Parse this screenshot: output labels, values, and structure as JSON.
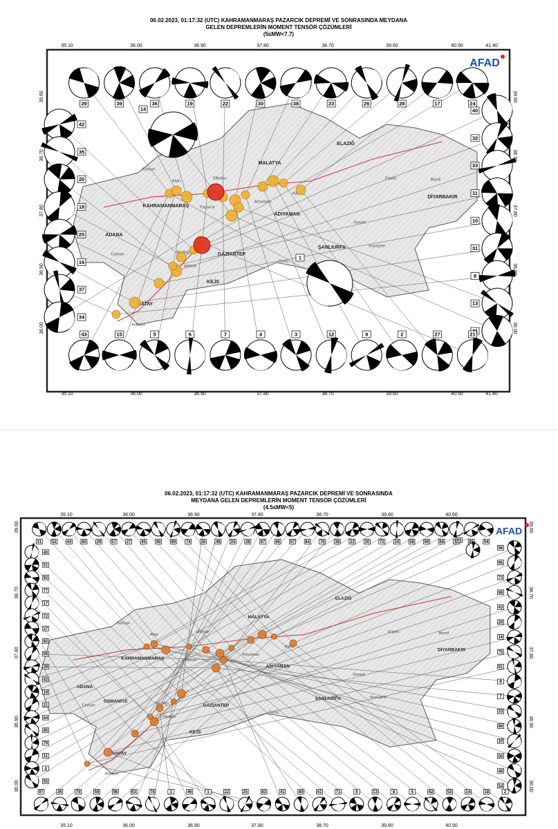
{
  "panels": [
    {
      "title": [
        "06.02.2023, 01:17:32 (UTC) KAHRAMANMARAŞ PAZARCIK DEPREMİ VE SONRASINDA MEYDANA",
        "GELEN DEPREMLERİN MOMENT TENSÖR ÇÖZÜMLERİ",
        "(5≤MW<7.7)"
      ],
      "logo": "AFAD",
      "lon_ticks": [
        "35.10",
        "36.00",
        "36.90",
        "37.80",
        "38.70",
        "39.60",
        "40.50",
        "41.40"
      ],
      "lat_ticks": [
        "39.60",
        "38.70",
        "37.80",
        "36.90",
        "36.00"
      ],
      "provinces": [
        "MALATYA",
        "ELAZIĞ",
        "KAHRAMANMARAŞ",
        "ADIYAMAN",
        "DİYARBAKIR",
        "ADANA",
        "GAZİANTEP",
        "ŞANLIURFA",
        "HATAY",
        "KİLİS"
      ],
      "districts": [
        "Afşin",
        "Elbistan",
        "Göksun",
        "Pazarcık",
        "Nurdağı",
        "İslahiye",
        "Kahta",
        "Siverek",
        "Ergani",
        "Bismil",
        "Ceyhan",
        "Antakya",
        "Suruç",
        "Viranşehir",
        "Adıyaman"
      ],
      "beachballs": {
        "top": [
          "29",
          "39",
          "36",
          "19",
          "22",
          "30",
          "38",
          "23",
          "26",
          "28",
          "17",
          "24"
        ],
        "right": [
          "40",
          "32",
          "33",
          "11",
          "10",
          "31",
          "8",
          "13",
          "41"
        ],
        "bottom": [
          "43",
          "15",
          "5",
          "6",
          "7",
          "4",
          "3",
          "12",
          "9",
          "2",
          "27",
          "21"
        ],
        "left": [
          "42",
          "35",
          "20",
          "18",
          "25",
          "16",
          "37",
          "34"
        ],
        "large": [
          "14",
          "1"
        ]
      }
    },
    {
      "title": [
        "06.02.2023, 01:17:32 (UTC) KAHRAMANMARAŞ PAZARCIK DEPREMİ VE SONRASINDA",
        "MEYDANA GELEN DEPREMLERİN MOMENT TENSÖR ÇÖZÜMLERİ",
        "(4.5≤MW<5)"
      ],
      "logo": "AFAD",
      "lon_ticks": [
        "35.10",
        "36.00",
        "36.90",
        "37.80",
        "38.70",
        "39.60",
        "40.50"
      ],
      "lat_ticks": [
        "39.60",
        "38.70",
        "37.80",
        "36.90",
        "36.00"
      ],
      "provinces": [
        "MALATYA",
        "ELAZIĞ",
        "KAHRAMANMARAŞ",
        "ADIYAMAN",
        "DİYARBAKIR",
        "ADANA",
        "GAZİANTEP",
        "ŞANLIURFA",
        "HATAY",
        "KİLİS",
        "OSMANİYE"
      ],
      "districts": [
        "Afşin",
        "Elbistan",
        "Göksun",
        "Pazarcık",
        "Nurdağı",
        "İslahiye",
        "Kahta",
        "Siverek",
        "Ergani",
        "Bismil",
        "Ceyhan",
        "Antakya",
        "Suruç",
        "Viranşehir",
        "Adıyaman"
      ],
      "beachballs": {
        "top": [
          "31",
          "52",
          "44",
          "65",
          "29",
          "57",
          "27",
          "45",
          "60",
          "89",
          "74",
          "26",
          "48",
          "35",
          "28",
          "87",
          "66",
          "67",
          "84",
          "76",
          "38",
          "23",
          "30",
          "72",
          "24",
          "58",
          "69",
          "68",
          "32",
          "85",
          "94"
        ],
        "right": [
          "96",
          "95",
          "73",
          "88",
          "43",
          "20",
          "16",
          "75",
          "91",
          "9",
          "7",
          "33",
          "86",
          "10",
          "50",
          "49",
          "54"
        ],
        "bottom": [
          "97",
          "36",
          "70",
          "59",
          "98",
          "63",
          "78",
          "3",
          "46",
          "1",
          "22",
          "25",
          "83",
          "41",
          "80",
          "61",
          "71",
          "6",
          "13",
          "8",
          "5",
          "62",
          "53",
          "14",
          "18",
          "2"
        ],
        "left": [
          "40",
          "51",
          "92",
          "77",
          "17",
          "72",
          "37",
          "82",
          "56",
          "39",
          "42",
          "19",
          "21",
          "64",
          "85",
          "79",
          "11",
          "4",
          "55"
        ],
        "large": [
          "93"
        ]
      }
    }
  ]
}
